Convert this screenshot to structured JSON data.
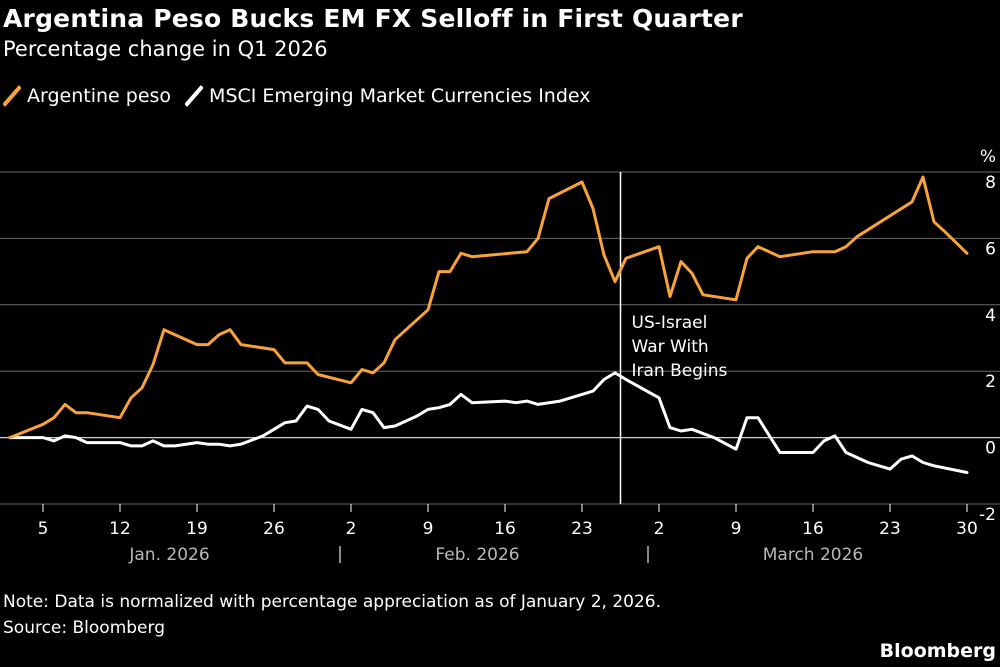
{
  "chart_data": {
    "type": "line",
    "title": "Argentina Peso Bucks EM FX Selloff in First Quarter",
    "subtitle": "Percentage change in Q1 2026",
    "ylabel": "%",
    "ylim": [
      -2,
      8
    ],
    "yticks": [
      8,
      6,
      4,
      2,
      0,
      -2
    ],
    "grid": true,
    "legend": "top-left",
    "x_tick_labels": [
      "5",
      "12",
      "19",
      "26",
      "2",
      "9",
      "16",
      "23",
      "2",
      "9",
      "16",
      "23",
      "30"
    ],
    "x_tick_days": [
      5,
      12,
      19,
      26,
      33,
      40,
      47,
      54,
      61,
      68,
      75,
      82,
      89
    ],
    "month_labels": [
      "Jan. 2026",
      "Feb. 2026",
      "March 2026"
    ],
    "month_centers": [
      16.5,
      44.5,
      75
    ],
    "month_separators": [
      32,
      60
    ],
    "series": [
      {
        "name": "Argentine peso",
        "color": "#f7a23b",
        "points": [
          [
            2,
            0
          ],
          [
            5,
            0.4
          ],
          [
            6,
            0.6
          ],
          [
            7,
            1.0
          ],
          [
            8,
            0.75
          ],
          [
            9,
            0.75
          ],
          [
            12,
            0.6
          ],
          [
            13,
            1.2
          ],
          [
            14,
            1.5
          ],
          [
            15,
            2.2
          ],
          [
            16,
            3.25
          ],
          [
            17,
            3.1
          ],
          [
            19,
            2.8
          ],
          [
            20,
            2.8
          ],
          [
            21,
            3.1
          ],
          [
            22,
            3.25
          ],
          [
            23,
            2.8
          ],
          [
            26,
            2.65
          ],
          [
            27,
            2.25
          ],
          [
            29,
            2.25
          ],
          [
            30,
            1.9
          ],
          [
            33,
            1.65
          ],
          [
            34,
            2.05
          ],
          [
            35,
            1.95
          ],
          [
            36,
            2.25
          ],
          [
            37,
            2.95
          ],
          [
            38,
            3.25
          ],
          [
            40,
            3.85
          ],
          [
            41,
            5.0
          ],
          [
            42,
            5.0
          ],
          [
            43,
            5.55
          ],
          [
            44,
            5.45
          ],
          [
            49,
            5.6
          ],
          [
            50,
            6.0
          ],
          [
            51,
            7.2
          ],
          [
            54,
            7.7
          ],
          [
            55,
            6.9
          ],
          [
            56,
            5.5
          ],
          [
            57,
            4.7
          ],
          [
            58,
            5.4
          ],
          [
            61,
            5.75
          ],
          [
            62,
            4.25
          ],
          [
            63,
            5.3
          ],
          [
            64,
            4.95
          ],
          [
            65,
            4.3
          ],
          [
            68,
            4.15
          ],
          [
            69,
            5.4
          ],
          [
            70,
            5.75
          ],
          [
            72,
            5.45
          ],
          [
            75,
            5.6
          ],
          [
            77,
            5.6
          ],
          [
            78,
            5.75
          ],
          [
            79,
            6.05
          ],
          [
            84,
            7.1
          ],
          [
            85,
            7.85
          ],
          [
            86,
            6.5
          ],
          [
            87,
            6.2
          ],
          [
            89,
            5.55
          ]
        ]
      },
      {
        "name": "MSCI Emerging Market Currencies Index",
        "color": "#ffffff",
        "points": [
          [
            2,
            0
          ],
          [
            5,
            0.0
          ],
          [
            6,
            -0.1
          ],
          [
            7,
            0.05
          ],
          [
            8,
            0.0
          ],
          [
            9,
            -0.15
          ],
          [
            12,
            -0.15
          ],
          [
            13,
            -0.25
          ],
          [
            14,
            -0.25
          ],
          [
            15,
            -0.1
          ],
          [
            16,
            -0.25
          ],
          [
            17,
            -0.25
          ],
          [
            19,
            -0.15
          ],
          [
            20,
            -0.2
          ],
          [
            21,
            -0.2
          ],
          [
            22,
            -0.25
          ],
          [
            23,
            -0.2
          ],
          [
            25,
            0.05
          ],
          [
            26,
            0.25
          ],
          [
            27,
            0.45
          ],
          [
            28,
            0.5
          ],
          [
            29,
            0.95
          ],
          [
            30,
            0.85
          ],
          [
            31,
            0.5
          ],
          [
            33,
            0.25
          ],
          [
            34,
            0.85
          ],
          [
            35,
            0.75
          ],
          [
            36,
            0.3
          ],
          [
            37,
            0.35
          ],
          [
            39,
            0.65
          ],
          [
            40,
            0.85
          ],
          [
            41,
            0.9
          ],
          [
            42,
            1.0
          ],
          [
            43,
            1.3
          ],
          [
            44,
            1.05
          ],
          [
            47,
            1.1
          ],
          [
            48,
            1.05
          ],
          [
            49,
            1.1
          ],
          [
            50,
            1.0
          ],
          [
            52,
            1.1
          ],
          [
            54,
            1.3
          ],
          [
            55,
            1.4
          ],
          [
            56,
            1.75
          ],
          [
            57,
            1.95
          ],
          [
            58,
            1.75
          ],
          [
            61,
            1.2
          ],
          [
            62,
            0.3
          ],
          [
            63,
            0.2
          ],
          [
            64,
            0.25
          ],
          [
            66,
            0.0
          ],
          [
            68,
            -0.35
          ],
          [
            69,
            0.6
          ],
          [
            70,
            0.6
          ],
          [
            72,
            -0.45
          ],
          [
            75,
            -0.45
          ],
          [
            76,
            -0.1
          ],
          [
            77,
            0.05
          ],
          [
            78,
            -0.45
          ],
          [
            80,
            -0.75
          ],
          [
            82,
            -0.95
          ],
          [
            83,
            -0.65
          ],
          [
            84,
            -0.55
          ],
          [
            85,
            -0.75
          ],
          [
            86,
            -0.85
          ],
          [
            89,
            -1.05
          ]
        ]
      }
    ],
    "annotations": [
      {
        "x": 57.5,
        "label_lines": [
          "US-Israel",
          "War With",
          "Iran Begins"
        ]
      }
    ]
  },
  "note": "Note: Data is normalized with percentage appreciation as of January 2, 2026.",
  "source": "Source: Bloomberg",
  "brand": "Bloomberg"
}
